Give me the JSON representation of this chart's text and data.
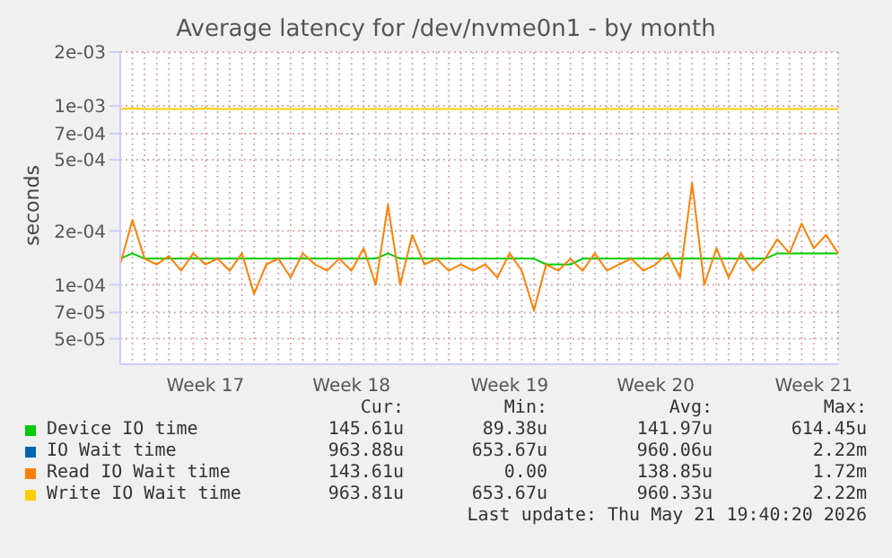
{
  "chart_data": {
    "type": "line",
    "title": "Average latency for /dev/nvme0n1 - by month",
    "ylabel": "seconds",
    "log": "y",
    "grid": true,
    "legend": "bottom",
    "marker": "none",
    "line_style": "solid",
    "categories": [
      null,
      null,
      null,
      null,
      null,
      null,
      null,
      "Week 17",
      null,
      null,
      null,
      null,
      null,
      null,
      null,
      null,
      null,
      null,
      null,
      "Week 18",
      null,
      null,
      null,
      null,
      null,
      null,
      null,
      null,
      null,
      null,
      null,
      null,
      "Week 19",
      null,
      null,
      null,
      null,
      null,
      null,
      null,
      null,
      null,
      null,
      null,
      "Week 20",
      null,
      null,
      null,
      null,
      null,
      null,
      null,
      null,
      null,
      null,
      null,
      null,
      "Week 21",
      null,
      null
    ],
    "ylim": [
      3.6e-05,
      0.002
    ],
    "yticks": [
      {
        "value": 5e-05,
        "label": "5e-05"
      },
      {
        "value": 7e-05,
        "label": "7e-05"
      },
      {
        "value": 0.0001,
        "label": "1e-04"
      },
      {
        "value": 0.0002,
        "label": "2e-04"
      },
      {
        "value": 0.0005,
        "label": "5e-04"
      },
      {
        "value": 0.0007,
        "label": "7e-04"
      },
      {
        "value": 0.001,
        "label": "1e-03"
      },
      {
        "value": 0.002,
        "label": "2e-03"
      }
    ],
    "series": [
      {
        "name": "Device IO time",
        "color": "#00cc00",
        "values": [
          0.00014,
          0.00015,
          0.00014,
          0.00014,
          0.00014,
          0.00014,
          0.00014,
          0.00014,
          0.00014,
          0.00014,
          0.00014,
          0.00014,
          0.00014,
          0.00014,
          0.00014,
          0.00014,
          0.00014,
          0.00014,
          0.00014,
          0.00014,
          0.00014,
          0.00014,
          0.00015,
          0.00014,
          0.00014,
          0.00014,
          0.00014,
          0.00014,
          0.00014,
          0.00014,
          0.00014,
          0.00014,
          0.00014,
          0.00014,
          0.00014,
          0.00013,
          0.00013,
          0.00013,
          0.00014,
          0.00014,
          0.00014,
          0.00014,
          0.00014,
          0.00014,
          0.00014,
          0.00014,
          0.00014,
          0.00014,
          0.00014,
          0.00014,
          0.00014,
          0.00014,
          0.00014,
          0.00014,
          0.00015,
          0.00015,
          0.00015,
          0.00015,
          0.00015,
          0.00015
        ]
      },
      {
        "name": "IO Wait time",
        "color": "#0066b3",
        "values": [
          null,
          null,
          null,
          null,
          null,
          null,
          null,
          null,
          null,
          null,
          null,
          null,
          null,
          null,
          null,
          null,
          null,
          null,
          null,
          null,
          null,
          null,
          null,
          null,
          null,
          null,
          null,
          null,
          null,
          null,
          null,
          null,
          null,
          null,
          null,
          null,
          null,
          null,
          null,
          null,
          null,
          null,
          null,
          null,
          null,
          null,
          null,
          null,
          null,
          null,
          null,
          null,
          null,
          null,
          null,
          null,
          null,
          null,
          null,
          null
        ]
      },
      {
        "name": "Read IO Wait time",
        "color": "#ff8000",
        "values": [
          0.00013,
          0.00023,
          0.00014,
          0.00013,
          0.000145,
          0.00012,
          0.00015,
          0.00013,
          0.00014,
          0.00012,
          0.00015,
          8.9e-05,
          0.00013,
          0.00014,
          0.00011,
          0.00015,
          0.00013,
          0.00012,
          0.00014,
          0.00012,
          0.00016,
          0.0001,
          0.00028,
          0.0001,
          0.00019,
          0.00013,
          0.00014,
          0.00012,
          0.00013,
          0.00012,
          0.00013,
          0.00011,
          0.00015,
          0.00012,
          7.2e-05,
          0.00013,
          0.00012,
          0.00014,
          0.00012,
          0.00015,
          0.00012,
          0.00013,
          0.00014,
          0.00012,
          0.00013,
          0.00015,
          0.00011,
          0.00037,
          0.0001,
          0.00016,
          0.00011,
          0.00015,
          0.00012,
          0.00014,
          0.00018,
          0.00015,
          0.00022,
          0.00016,
          0.00019,
          0.00015
        ]
      },
      {
        "name": "Write IO Wait time",
        "color": "#ffcc00",
        "values": [
          0.00096,
          0.00097,
          0.00096,
          0.00096,
          0.00096,
          0.00096,
          0.00096,
          0.00097,
          0.00096,
          0.00096,
          0.00096,
          0.00096,
          0.00096,
          0.00096,
          0.00096,
          0.00096,
          0.00096,
          0.00096,
          0.00096,
          0.00096,
          0.00096,
          0.00096,
          0.00096,
          0.00096,
          0.00096,
          0.00096,
          0.00096,
          0.00096,
          0.00096,
          0.00096,
          0.00096,
          0.00096,
          0.00096,
          0.00096,
          0.00096,
          0.00096,
          0.00096,
          0.00096,
          0.00096,
          0.00096,
          0.00096,
          0.00096,
          0.00096,
          0.00096,
          0.00096,
          0.00096,
          0.00096,
          0.00096,
          0.00096,
          0.00096,
          0.00096,
          0.00096,
          0.00096,
          0.00096,
          0.00096,
          0.00096,
          0.00096,
          0.00096,
          0.00096,
          0.00096
        ]
      }
    ],
    "annotations": [
      "Cur:",
      "Min:",
      "Avg:",
      "Max:",
      "145.61u",
      "89.38u",
      "141.97u",
      "614.45u",
      "963.88u",
      "653.67u",
      "960.06u",
      "2.22m",
      "143.61u",
      "0.00",
      "138.85u",
      "1.72m",
      "963.81u",
      "653.67u",
      "960.33u",
      "2.22m",
      "Last update: Thu May 21 19:40:20 2026"
    ]
  }
}
